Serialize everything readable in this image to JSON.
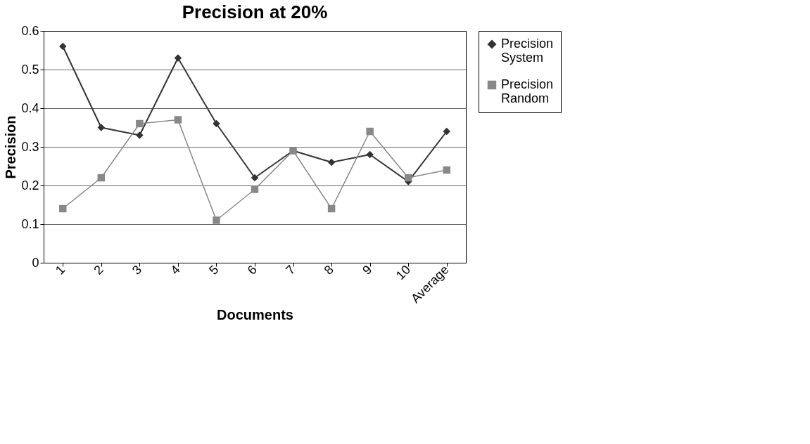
{
  "chart_data": {
    "type": "line",
    "title": "Precision at 20%",
    "xlabel": "Documents",
    "ylabel": "Precision",
    "categories": [
      "1",
      "2",
      "3",
      "4",
      "5",
      "6",
      "7",
      "8",
      "9",
      "10",
      "Average"
    ],
    "series": [
      {
        "name": "Precision System",
        "color": "#333333",
        "marker": "diamond",
        "values": [
          0.56,
          0.35,
          0.33,
          0.53,
          0.36,
          0.22,
          0.29,
          0.26,
          0.28,
          0.21,
          0.34
        ]
      },
      {
        "name": "Precision Random",
        "color": "#888888",
        "marker": "square",
        "values": [
          0.14,
          0.22,
          0.36,
          0.37,
          0.11,
          0.19,
          0.29,
          0.14,
          0.34,
          0.22,
          0.24
        ]
      }
    ],
    "ylim": [
      0,
      0.6
    ],
    "yticks": [
      0,
      0.1,
      0.2,
      0.3,
      0.4,
      0.5,
      0.6
    ],
    "grid": "y",
    "legend": "right"
  }
}
